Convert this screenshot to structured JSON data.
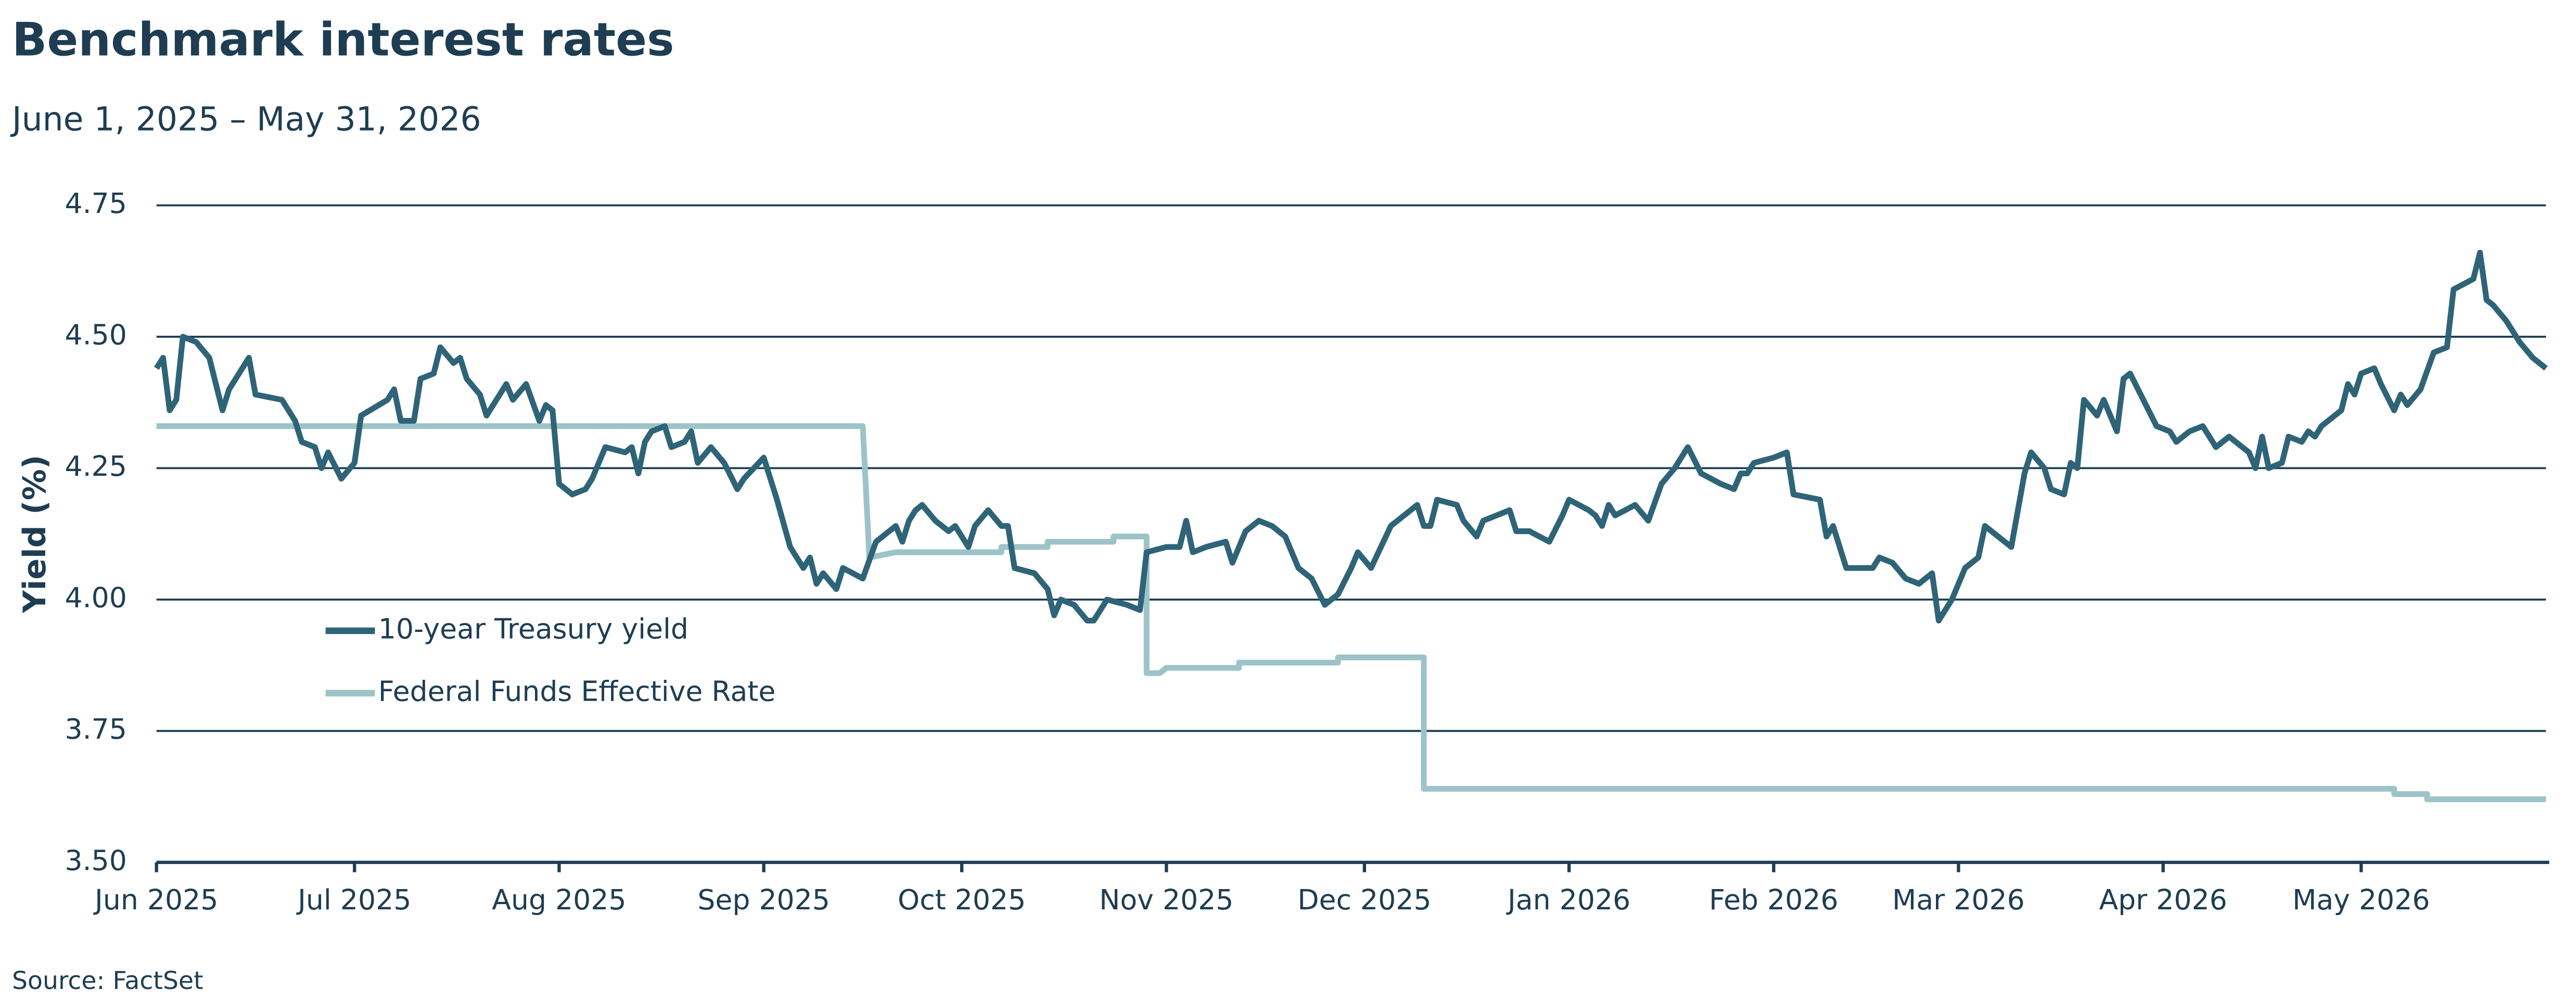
{
  "chart_data": {
    "type": "line",
    "title": "Benchmark interest rates",
    "subtitle": "June 1, 2025 – May 31, 2026",
    "y_label": "Yield (%)",
    "source": "Source: FactSet",
    "xlim": [
      0,
      362
    ],
    "xticks": [
      {
        "value": 0,
        "label": "Jun 2025"
      },
      {
        "value": 30,
        "label": "Jul 2025"
      },
      {
        "value": 61,
        "label": "Aug 2025"
      },
      {
        "value": 92,
        "label": "Sep 2025"
      },
      {
        "value": 122,
        "label": "Oct 2025"
      },
      {
        "value": 153,
        "label": "Nov 2025"
      },
      {
        "value": 183,
        "label": "Dec 2025"
      },
      {
        "value": 214,
        "label": "Jan 2026"
      },
      {
        "value": 245,
        "label": "Feb 2026"
      },
      {
        "value": 273,
        "label": "Mar 2026"
      },
      {
        "value": 304,
        "label": "Apr 2026"
      },
      {
        "value": 334,
        "label": "May 2026"
      }
    ],
    "ylim": [
      3.5,
      4.75
    ],
    "yticks": [
      {
        "value": 3.5,
        "label": "3.50"
      },
      {
        "value": 3.75,
        "label": "3.75"
      },
      {
        "value": 4,
        "label": "4.00"
      },
      {
        "value": 4.25,
        "label": "4.25"
      },
      {
        "value": 4.5,
        "label": "4.50"
      },
      {
        "value": 4.75,
        "label": "4.75"
      }
    ],
    "grid": true,
    "legend": "left",
    "series": [
      {
        "name": "10-year Treasury yield",
        "color": "#2f6478",
        "x": [
          0,
          1,
          2,
          3,
          4,
          6,
          8,
          10,
          11,
          14,
          15,
          19,
          21,
          22,
          24,
          25,
          26,
          28,
          30,
          31,
          35,
          36,
          37,
          39,
          40,
          42,
          43,
          45,
          46,
          47,
          49,
          50,
          52,
          53,
          54,
          56,
          58,
          59,
          60,
          61,
          63,
          65,
          66,
          68,
          71,
          72,
          73,
          74,
          75,
          77,
          78,
          80,
          81,
          82,
          84,
          86,
          88,
          89,
          92,
          94,
          96,
          98,
          99,
          100,
          101,
          103,
          104,
          107,
          109,
          112,
          113,
          114,
          115,
          116,
          118,
          120,
          121,
          122,
          123,
          124,
          126,
          128,
          129,
          130,
          133,
          135,
          136,
          137,
          139,
          141,
          142,
          144,
          147,
          149,
          150,
          153,
          155,
          156,
          157,
          159,
          162,
          163,
          165,
          167,
          169,
          171,
          173,
          175,
          177,
          179,
          181,
          182,
          184,
          187,
          189,
          191,
          192,
          193,
          194,
          197,
          198,
          200,
          201,
          205,
          206,
          208,
          211,
          213,
          214,
          217,
          218,
          219,
          220,
          221,
          224,
          226,
          228,
          230,
          232,
          234,
          237,
          239,
          240,
          241,
          242,
          245,
          247,
          248,
          252,
          253,
          254,
          256,
          260,
          261,
          263,
          265,
          267,
          269,
          270,
          272,
          274,
          276,
          277,
          279,
          281,
          283,
          284,
          286,
          287,
          289,
          290,
          291,
          292,
          294,
          295,
          297,
          298,
          299,
          301,
          303,
          305,
          306,
          308,
          310,
          312,
          314,
          315,
          317,
          318,
          319,
          320,
          322,
          323,
          325,
          326,
          327,
          328,
          331,
          332,
          333,
          334,
          336,
          337,
          339,
          340,
          341,
          343,
          345,
          347,
          348,
          351,
          352,
          353,
          354,
          356,
          358,
          360,
          362
        ],
        "values": [
          4.44,
          4.46,
          4.36,
          4.38,
          4.5,
          4.49,
          4.46,
          4.36,
          4.4,
          4.46,
          4.39,
          4.38,
          4.34,
          4.3,
          4.29,
          4.25,
          4.28,
          4.23,
          4.26,
          4.35,
          4.38,
          4.4,
          4.34,
          4.34,
          4.42,
          4.43,
          4.48,
          4.45,
          4.46,
          4.42,
          4.39,
          4.35,
          4.39,
          4.41,
          4.38,
          4.41,
          4.34,
          4.37,
          4.36,
          4.22,
          4.2,
          4.21,
          4.23,
          4.29,
          4.28,
          4.29,
          4.24,
          4.3,
          4.32,
          4.33,
          4.29,
          4.3,
          4.32,
          4.26,
          4.29,
          4.26,
          4.21,
          4.23,
          4.27,
          4.19,
          4.1,
          4.06,
          4.08,
          4.03,
          4.05,
          4.02,
          4.06,
          4.04,
          4.11,
          4.14,
          4.11,
          4.15,
          4.17,
          4.18,
          4.15,
          4.13,
          4.14,
          4.12,
          4.1,
          4.14,
          4.17,
          4.14,
          4.14,
          4.06,
          4.05,
          4.02,
          3.97,
          4.0,
          3.99,
          3.96,
          3.96,
          4.0,
          3.99,
          3.98,
          4.09,
          4.1,
          4.1,
          4.15,
          4.09,
          4.1,
          4.11,
          4.07,
          4.13,
          4.15,
          4.14,
          4.12,
          4.06,
          4.04,
          3.99,
          4.01,
          4.06,
          4.09,
          4.06,
          4.14,
          4.16,
          4.18,
          4.14,
          4.14,
          4.19,
          4.18,
          4.15,
          4.12,
          4.15,
          4.17,
          4.13,
          4.13,
          4.11,
          4.16,
          4.19,
          4.17,
          4.16,
          4.14,
          4.18,
          4.16,
          4.18,
          4.15,
          4.22,
          4.25,
          4.29,
          4.24,
          4.22,
          4.21,
          4.24,
          4.24,
          4.26,
          4.27,
          4.28,
          4.2,
          4.19,
          4.12,
          4.14,
          4.06,
          4.06,
          4.08,
          4.07,
          4.04,
          4.03,
          4.05,
          3.96,
          4.0,
          4.06,
          4.08,
          4.14,
          4.12,
          4.1,
          4.24,
          4.28,
          4.25,
          4.21,
          4.2,
          4.26,
          4.25,
          4.38,
          4.35,
          4.38,
          4.32,
          4.42,
          4.43,
          4.38,
          4.33,
          4.32,
          4.3,
          4.32,
          4.33,
          4.29,
          4.31,
          4.3,
          4.28,
          4.25,
          4.31,
          4.25,
          4.26,
          4.31,
          4.3,
          4.32,
          4.31,
          4.33,
          4.36,
          4.41,
          4.39,
          4.43,
          4.44,
          4.41,
          4.36,
          4.39,
          4.37,
          4.4,
          4.47,
          4.48,
          4.59,
          4.61,
          4.66,
          4.57,
          4.56,
          4.53,
          4.49,
          4.46,
          4.44
        ]
      },
      {
        "name": "Federal Funds Effective Rate",
        "color": "#9cc3c8",
        "x": [
          0,
          107,
          108,
          112,
          128,
          128,
          135,
          135,
          145,
          145,
          150,
          150,
          152,
          153,
          164,
          164,
          179,
          179,
          192,
          192,
          339,
          339,
          344,
          344,
          362
        ],
        "values": [
          4.33,
          4.33,
          4.08,
          4.09,
          4.09,
          4.1,
          4.1,
          4.11,
          4.11,
          4.12,
          4.12,
          3.86,
          3.86,
          3.87,
          3.87,
          3.88,
          3.88,
          3.89,
          3.89,
          3.64,
          3.64,
          3.63,
          3.63,
          3.62,
          3.62
        ]
      }
    ]
  }
}
